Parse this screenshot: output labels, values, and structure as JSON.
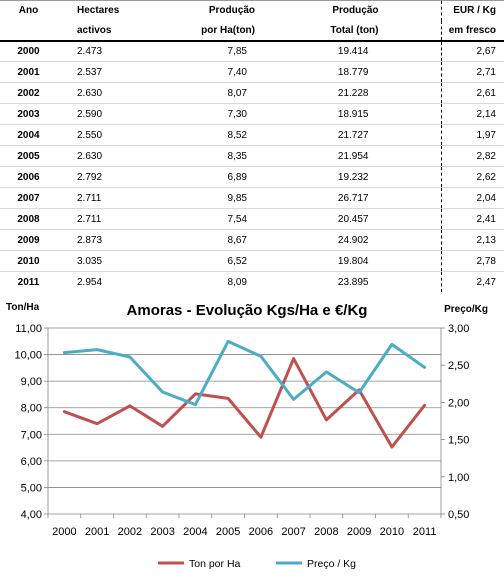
{
  "table": {
    "headers": {
      "ano": [
        "Ano",
        ""
      ],
      "hectares": [
        "Hectares",
        "activos"
      ],
      "prod_ha": [
        "Produção",
        "por Ha(ton)"
      ],
      "prod_total": [
        "Produção",
        "Total (ton)"
      ],
      "eur": [
        "EUR / Kg",
        "em fresco"
      ]
    },
    "rows": [
      {
        "ano": "2000",
        "hectares": "2.473",
        "prod_ha": "7,85",
        "prod_total": "19.414",
        "eur": "2,67"
      },
      {
        "ano": "2001",
        "hectares": "2.537",
        "prod_ha": "7,40",
        "prod_total": "18.779",
        "eur": "2,71"
      },
      {
        "ano": "2002",
        "hectares": "2.630",
        "prod_ha": "8,07",
        "prod_total": "21.228",
        "eur": "2,61"
      },
      {
        "ano": "2003",
        "hectares": "2.590",
        "prod_ha": "7,30",
        "prod_total": "18.915",
        "eur": "2,14"
      },
      {
        "ano": "2004",
        "hectares": "2.550",
        "prod_ha": "8,52",
        "prod_total": "21.727",
        "eur": "1,97"
      },
      {
        "ano": "2005",
        "hectares": "2.630",
        "prod_ha": "8,35",
        "prod_total": "21.954",
        "eur": "2,82"
      },
      {
        "ano": "2006",
        "hectares": "2.792",
        "prod_ha": "6,89",
        "prod_total": "19.232",
        "eur": "2,62"
      },
      {
        "ano": "2007",
        "hectares": "2.711",
        "prod_ha": "9,85",
        "prod_total": "26.717",
        "eur": "2,04"
      },
      {
        "ano": "2008",
        "hectares": "2.711",
        "prod_ha": "7,54",
        "prod_total": "20.457",
        "eur": "2,41"
      },
      {
        "ano": "2009",
        "hectares": "2.873",
        "prod_ha": "8,67",
        "prod_total": "24.902",
        "eur": "2,13"
      },
      {
        "ano": "2010",
        "hectares": "3.035",
        "prod_ha": "6,52",
        "prod_total": "19.804",
        "eur": "2,78"
      },
      {
        "ano": "2011",
        "hectares": "2.954",
        "prod_ha": "8,09",
        "prod_total": "23.895",
        "eur": "2,47"
      }
    ]
  },
  "chart_data": {
    "type": "line",
    "title": "Amoras - Evolução Kgs/Ha e €/Kg",
    "ylabel_left": "Ton/Ha",
    "ylabel_right": "Preço/Kg",
    "categories": [
      "2000",
      "2001",
      "2002",
      "2003",
      "2004",
      "2005",
      "2006",
      "2007",
      "2008",
      "2009",
      "2010",
      "2011"
    ],
    "ylim_left": [
      4,
      11
    ],
    "yticks_left": [
      4,
      5,
      6,
      7,
      8,
      9,
      10,
      11
    ],
    "ytick_labels_left": [
      "4,00",
      "5,00",
      "6,00",
      "7,00",
      "8,00",
      "9,00",
      "10,00",
      "11,00"
    ],
    "ylim_right": [
      0.5,
      3.0
    ],
    "yticks_right": [
      0.5,
      1.0,
      1.5,
      2.0,
      2.5,
      3.0
    ],
    "ytick_labels_right": [
      "0,50",
      "1,00",
      "1,50",
      "2,00",
      "2,50",
      "3,00"
    ],
    "grid": true,
    "legend_position": "bottom",
    "series": [
      {
        "name": "Ton por Ha",
        "axis": "left",
        "color": "#c0504d",
        "values": [
          7.85,
          7.4,
          8.07,
          7.3,
          8.52,
          8.35,
          6.89,
          9.85,
          7.54,
          8.67,
          6.52,
          8.09
        ]
      },
      {
        "name": "Preço / Kg",
        "axis": "right",
        "color": "#4bacc6",
        "values": [
          2.67,
          2.71,
          2.61,
          2.14,
          1.97,
          2.82,
          2.62,
          2.04,
          2.41,
          2.13,
          2.78,
          2.47
        ]
      }
    ]
  }
}
